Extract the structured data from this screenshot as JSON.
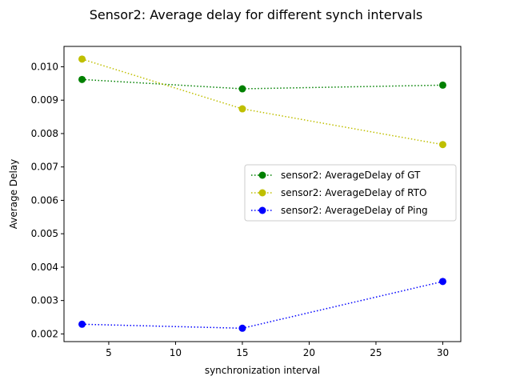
{
  "chart_data": {
    "type": "line",
    "title": "Sensor2: Average delay for different synch intervals",
    "xlabel": "synchronization interval",
    "ylabel": "Average Delay",
    "xlim": [
      1.65,
      31.35
    ],
    "ylim": [
      0.00177,
      0.01061
    ],
    "xticks": [
      5,
      10,
      15,
      20,
      25,
      30
    ],
    "xtick_labels": [
      "5",
      "10",
      "15",
      "20",
      "25",
      "30"
    ],
    "yticks": [
      0.002,
      0.003,
      0.004,
      0.005,
      0.006,
      0.007,
      0.008,
      0.009,
      0.01
    ],
    "ytick_labels": [
      "0.002",
      "0.003",
      "0.004",
      "0.005",
      "0.006",
      "0.007",
      "0.008",
      "0.009",
      "0.010"
    ],
    "grid": false,
    "legend_position": "center-right",
    "x": [
      3,
      15,
      30
    ],
    "series": [
      {
        "name": "sensor2: AverageDelay of GT",
        "values": [
          0.00962,
          0.00934,
          0.00945
        ],
        "color": "#008000",
        "line_style": "dotted",
        "marker": "circle"
      },
      {
        "name": "sensor2: AverageDelay of RTO",
        "values": [
          0.01023,
          0.00874,
          0.00767
        ],
        "color": "#bfbf00",
        "line_style": "dotted",
        "marker": "circle"
      },
      {
        "name": "sensor2: AverageDelay of Ping",
        "values": [
          0.00229,
          0.00217,
          0.00357
        ],
        "color": "#0000ff",
        "line_style": "dotted",
        "marker": "circle"
      }
    ]
  }
}
